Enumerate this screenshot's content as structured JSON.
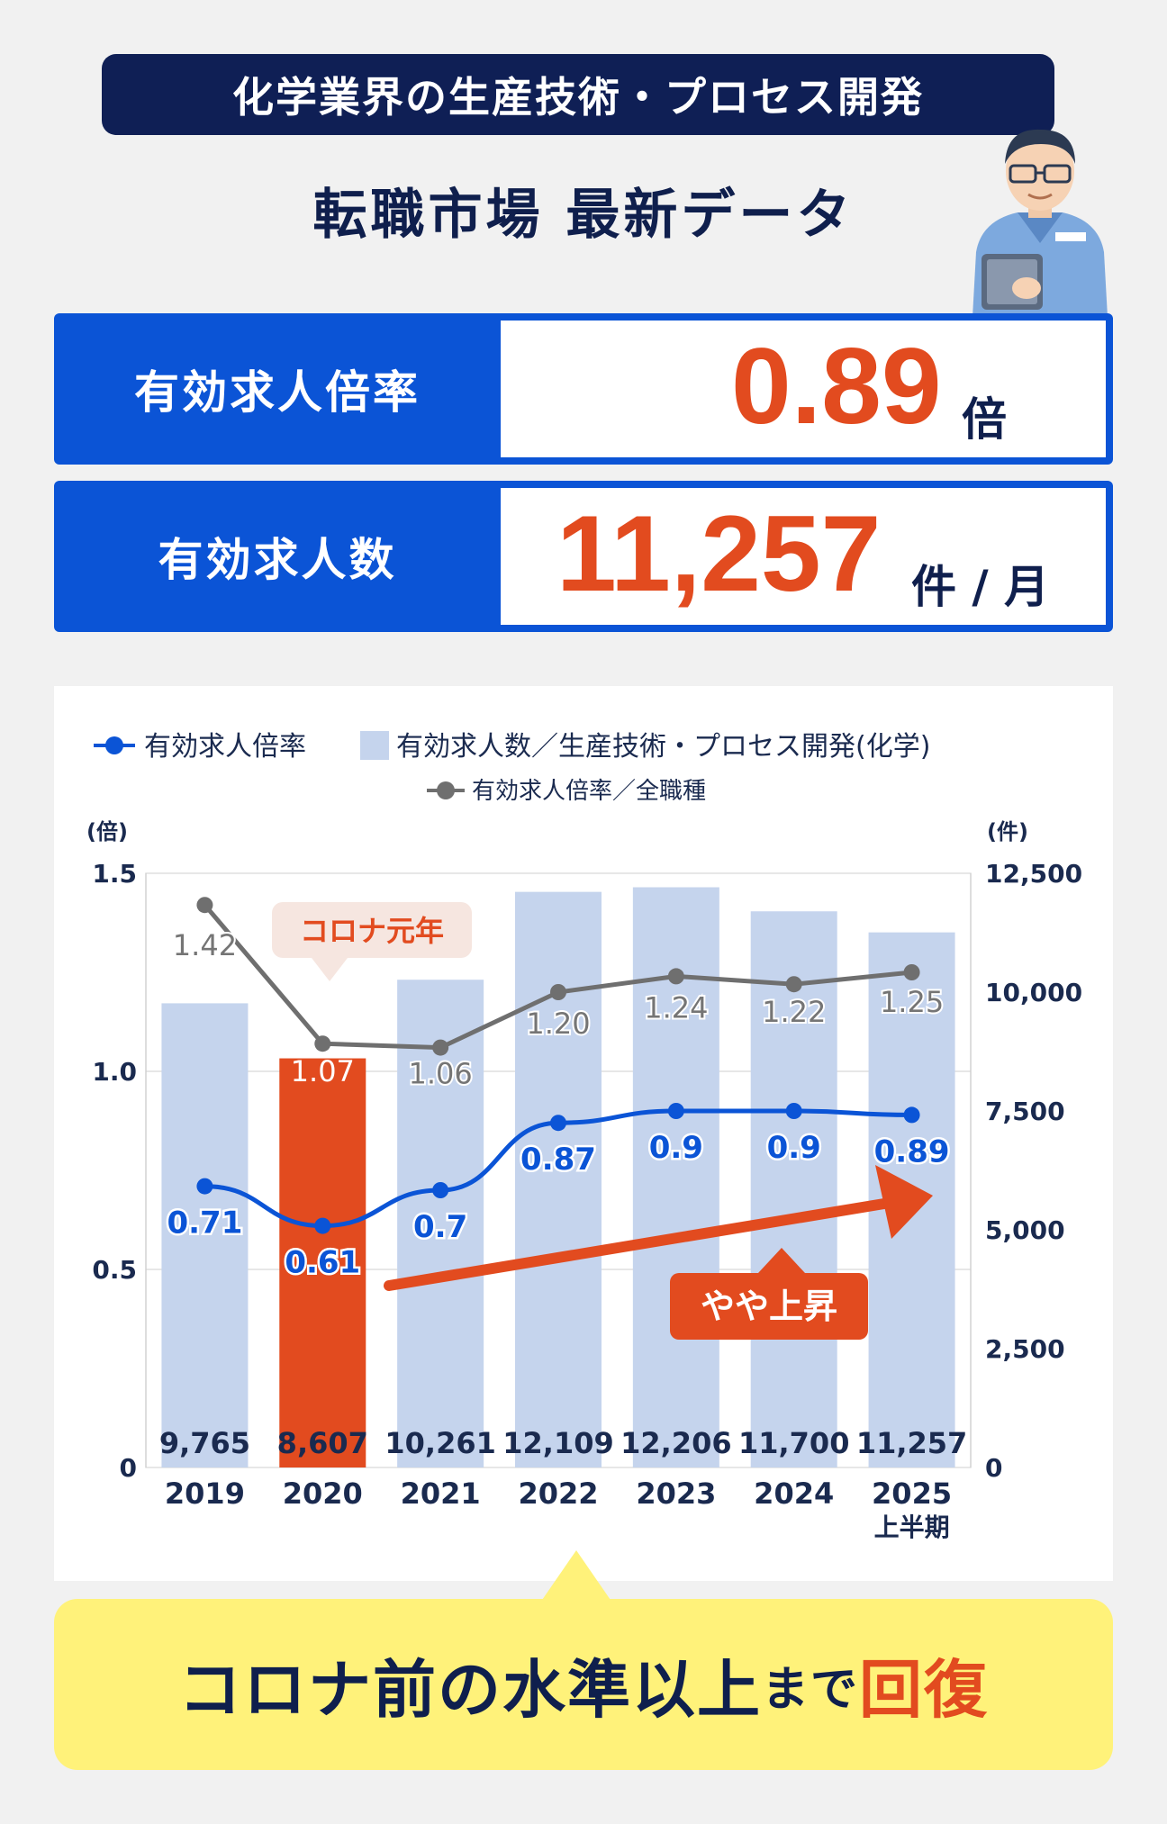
{
  "header": {
    "title": "化学業界の生産技術・プロセス開発",
    "subtitle": "転職市場 最新データ"
  },
  "stats": [
    {
      "label": "有効求人倍率",
      "value": "0.89",
      "unit": "倍"
    },
    {
      "label": "有効求人数",
      "value": "11,257",
      "unit": "件 / 月"
    }
  ],
  "chart_data": {
    "type": "bar",
    "categories": [
      "2019",
      "2020",
      "2021",
      "2022",
      "2023",
      "2024",
      "2025"
    ],
    "category_sublabels": [
      "",
      "",
      "",
      "",
      "",
      "",
      "上半期"
    ],
    "series": [
      {
        "name": "有効求人数／生産技術・プロセス開発(化学)",
        "type": "bar",
        "axis": "right",
        "values": [
          9765,
          8607,
          10261,
          12109,
          12206,
          11700,
          11257
        ],
        "labels": [
          "9,765",
          "8,607",
          "10,261",
          "12,109",
          "12,206",
          "11,700",
          "11,257"
        ],
        "highlight_index": 1
      },
      {
        "name": "有効求人倍率",
        "type": "line",
        "axis": "left",
        "values": [
          0.71,
          0.61,
          0.7,
          0.87,
          0.9,
          0.9,
          0.89
        ],
        "labels": [
          "0.71",
          "0.61",
          "0.7",
          "0.87",
          "0.9",
          "0.9",
          "0.89"
        ]
      },
      {
        "name": "有効求人倍率／全職種",
        "type": "line",
        "axis": "left",
        "values": [
          1.42,
          1.07,
          1.06,
          1.2,
          1.24,
          1.22,
          1.25
        ],
        "labels": [
          "1.42",
          "1.07",
          "1.06",
          "1.20",
          "1.24",
          "1.22",
          "1.25"
        ]
      }
    ],
    "y_left": {
      "unit": "(倍)",
      "ticks": [
        "0",
        "0.5",
        "1.0",
        "1.5"
      ],
      "tick_values": [
        0,
        0.5,
        1.0,
        1.5
      ],
      "range": [
        0,
        1.5
      ]
    },
    "y_right": {
      "unit": "(件)",
      "ticks": [
        "0",
        "2,500",
        "5,000",
        "7,500",
        "10,000",
        "12,500"
      ],
      "tick_values": [
        0,
        2500,
        5000,
        7500,
        10000,
        12500
      ],
      "range": [
        0,
        12500
      ]
    },
    "grid": true,
    "legend": "top",
    "annotations": {
      "corona": "コロナ元年",
      "trend": "やや上昇"
    },
    "colors": {
      "bar": "#c5d4ed",
      "bar_highlight": "#e24b1f",
      "line_main": "#0b54d6",
      "line_all": "#6f6f6f",
      "accent": "#e24b1f"
    }
  },
  "callout": {
    "part1": "コロナ前の水準以上",
    "part2": "まで",
    "part3": "回復"
  }
}
